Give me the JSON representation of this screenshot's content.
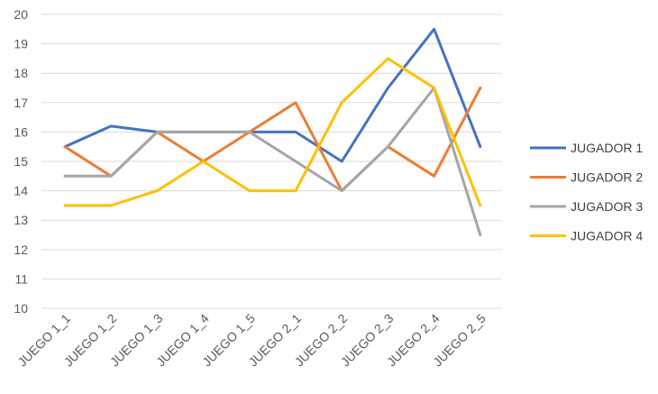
{
  "chart_data": {
    "type": "line",
    "title": "",
    "xlabel": "",
    "ylabel": "",
    "ylim": [
      10,
      20
    ],
    "yticks": [
      10,
      11,
      12,
      13,
      14,
      15,
      16,
      17,
      18,
      19,
      20
    ],
    "grid": "horizontal",
    "legend_position": "right",
    "categories": [
      "JUEGO 1_1",
      "JUEGO 1_2",
      "JUEGO 1_3",
      "JUEGO 1_4",
      "JUEGO 1_5",
      "JUEGO 2_1",
      "JUEGO 2_2",
      "JUEGO 2_3",
      "JUEGO 2_4",
      "JUEGO 2_5"
    ],
    "series": [
      {
        "name": "JUGADOR 1",
        "color": "#4472c4",
        "values": [
          15.5,
          16.2,
          16,
          16,
          16,
          16,
          15,
          17.5,
          19.5,
          15.5
        ]
      },
      {
        "name": "JUGADOR 2",
        "color": "#ed7d31",
        "values": [
          15.5,
          14.5,
          16,
          15,
          16,
          17,
          14,
          15.5,
          14.5,
          17.5
        ]
      },
      {
        "name": "JUGADOR 3",
        "color": "#a5a5a5",
        "values": [
          14.5,
          14.5,
          16,
          16,
          16,
          15,
          14,
          15.5,
          17.5,
          12.5
        ]
      },
      {
        "name": "JUGADOR 4",
        "color": "#ffc000",
        "values": [
          13.5,
          13.5,
          14,
          15,
          14,
          14,
          17,
          18.5,
          17.5,
          13.5
        ]
      }
    ]
  }
}
